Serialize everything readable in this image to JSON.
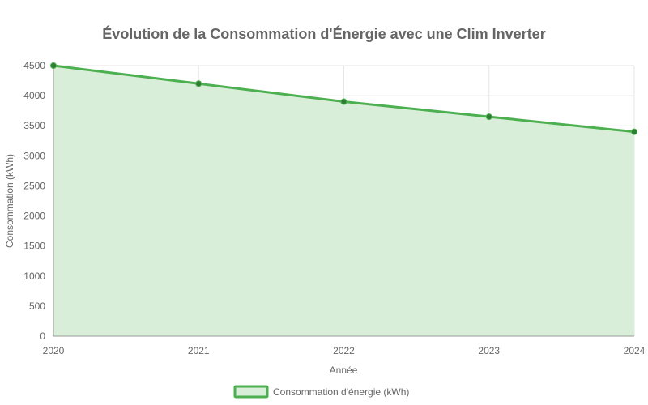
{
  "colors": {
    "line": "#4caf50",
    "point": "#2e7d32",
    "fill": "#d9eed9",
    "grid": "#e6e6e6",
    "axis": "#999999",
    "text": "#666666"
  },
  "chart_data": {
    "type": "line",
    "title": "Évolution de la Consommation d'Énergie avec une Clim Inverter",
    "xlabel": "Année",
    "ylabel": "Consommation (kWh)",
    "categories": [
      "2020",
      "2021",
      "2022",
      "2023",
      "2024"
    ],
    "series": [
      {
        "name": "Consommation d'énergie (kWh)",
        "values": [
          4500,
          4200,
          3900,
          3650,
          3400
        ],
        "filled": true
      }
    ],
    "ylim": [
      0,
      4500
    ],
    "yticks": [
      0,
      500,
      1000,
      1500,
      2000,
      2500,
      3000,
      3500,
      4000,
      4500
    ],
    "grid": true,
    "legend_position": "bottom"
  }
}
